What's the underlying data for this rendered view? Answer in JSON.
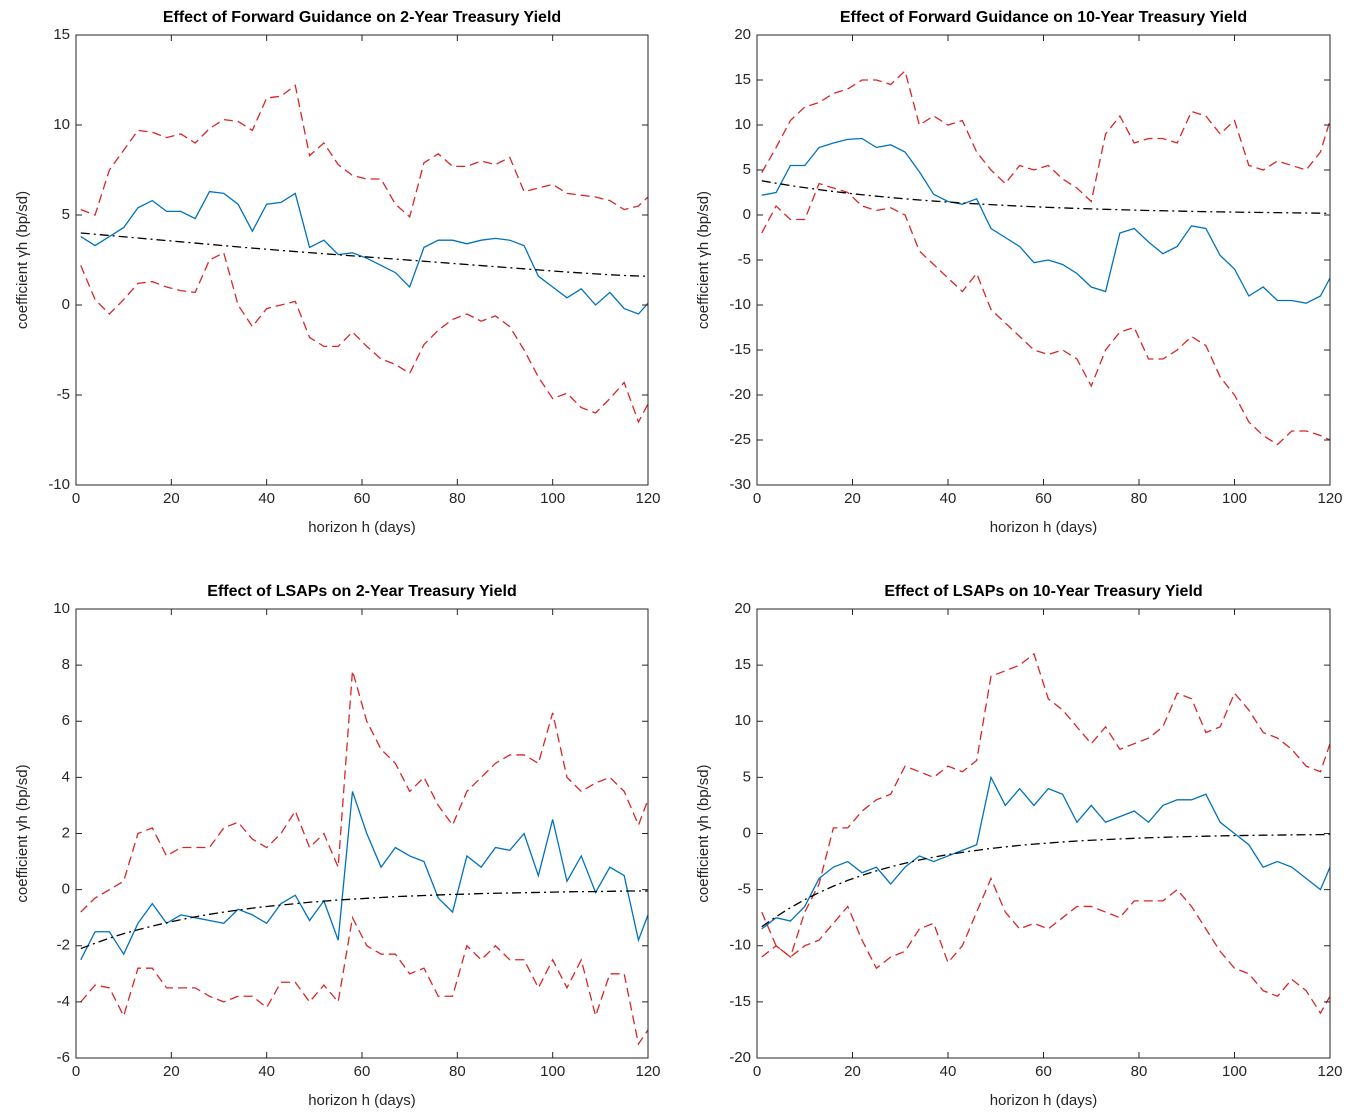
{
  "chart_data": [
    {
      "type": "line",
      "title": "Effect of Forward Guidance on 2-Year Treasury Yield",
      "xlabel": "horizon h (days)",
      "ylabel": "coefficient γh (bp/sd)",
      "x": [
        1,
        4,
        7,
        10,
        13,
        16,
        19,
        22,
        25,
        28,
        31,
        34,
        37,
        40,
        43,
        46,
        49,
        52,
        55,
        58,
        61,
        64,
        67,
        70,
        73,
        76,
        79,
        82,
        85,
        88,
        91,
        94,
        97,
        100,
        103,
        106,
        109,
        112,
        115,
        118,
        120
      ],
      "xlim": [
        0,
        120
      ],
      "xticks": [
        0,
        20,
        40,
        60,
        80,
        100,
        120
      ],
      "ylim": [
        -10,
        15
      ],
      "yticks": [
        -10,
        -5,
        0,
        5,
        10,
        15
      ],
      "grid": false,
      "series": [
        {
          "color": "#d62728",
          "style": "dashed",
          "values": [
            5.3,
            5.0,
            7.5,
            8.6,
            9.7,
            9.6,
            9.3,
            9.5,
            9.0,
            9.8,
            10.3,
            10.2,
            9.7,
            11.5,
            11.6,
            12.2,
            8.3,
            9.0,
            7.8,
            7.2,
            7.0,
            7.0,
            5.6,
            4.9,
            7.9,
            8.4,
            7.7,
            7.7,
            8.0,
            7.8,
            8.2,
            6.3,
            6.5,
            6.7,
            6.2,
            6.1,
            6.0,
            5.8,
            5.3,
            5.5,
            6.0
          ]
        },
        {
          "color": "#d62728",
          "style": "dashed",
          "values": [
            2.2,
            0.3,
            -0.5,
            0.3,
            1.2,
            1.3,
            1.0,
            0.8,
            0.7,
            2.5,
            2.9,
            0.0,
            -1.2,
            -0.2,
            0.0,
            0.2,
            -1.8,
            -2.3,
            -2.3,
            -1.5,
            -2.3,
            -3.0,
            -3.3,
            -3.8,
            -2.2,
            -1.4,
            -0.8,
            -0.5,
            -0.9,
            -0.6,
            -1.2,
            -2.5,
            -4.0,
            -5.2,
            -4.9,
            -5.7,
            -6.0,
            -5.2,
            -4.3,
            -6.5,
            -5.5
          ]
        },
        {
          "color": "#0072bd",
          "style": "solid",
          "values": [
            3.8,
            3.3,
            3.8,
            4.3,
            5.4,
            5.8,
            5.2,
            5.2,
            4.8,
            6.3,
            6.2,
            5.6,
            4.1,
            5.6,
            5.7,
            6.2,
            3.2,
            3.6,
            2.8,
            2.9,
            2.6,
            2.2,
            1.8,
            1.0,
            3.2,
            3.6,
            3.6,
            3.4,
            3.6,
            3.7,
            3.6,
            3.3,
            1.6,
            1.0,
            0.4,
            0.9,
            0.0,
            0.7,
            -0.2,
            -0.5,
            0.1
          ]
        },
        {
          "color": "#000000",
          "style": "dashdot",
          "values": [
            4.0,
            3.93,
            3.86,
            3.79,
            3.72,
            3.65,
            3.58,
            3.51,
            3.44,
            3.37,
            3.3,
            3.23,
            3.16,
            3.1,
            3.03,
            2.97,
            2.91,
            2.85,
            2.79,
            2.73,
            2.67,
            2.61,
            2.55,
            2.49,
            2.43,
            2.37,
            2.31,
            2.25,
            2.19,
            2.13,
            2.07,
            2.01,
            1.95,
            1.89,
            1.83,
            1.78,
            1.73,
            1.68,
            1.64,
            1.61,
            1.6
          ]
        }
      ]
    },
    {
      "type": "line",
      "title": "Effect of Forward Guidance on 10-Year Treasury Yield",
      "xlabel": "horizon h (days)",
      "ylabel": "coefficient γh (bp/sd)",
      "x": [
        1,
        4,
        7,
        10,
        13,
        16,
        19,
        22,
        25,
        28,
        31,
        34,
        37,
        40,
        43,
        46,
        49,
        52,
        55,
        58,
        61,
        64,
        67,
        70,
        73,
        76,
        79,
        82,
        85,
        88,
        91,
        94,
        97,
        100,
        103,
        106,
        109,
        112,
        115,
        118,
        120
      ],
      "xlim": [
        0,
        120
      ],
      "xticks": [
        0,
        20,
        40,
        60,
        80,
        100,
        120
      ],
      "ylim": [
        -30,
        20
      ],
      "yticks": [
        -30,
        -25,
        -20,
        -15,
        -10,
        -5,
        0,
        5,
        10,
        15,
        20
      ],
      "grid": false,
      "series": [
        {
          "color": "#d62728",
          "style": "dashed",
          "values": [
            4.7,
            7.5,
            10.5,
            12.0,
            12.5,
            13.5,
            14.0,
            15.0,
            15.0,
            14.5,
            16.0,
            10.0,
            11.0,
            10.0,
            10.5,
            7.0,
            5.0,
            3.5,
            5.5,
            5.0,
            5.5,
            4.0,
            3.0,
            1.5,
            9.0,
            11.0,
            8.0,
            8.5,
            8.5,
            8.0,
            11.5,
            11.0,
            9.0,
            10.5,
            5.5,
            5.0,
            6.0,
            5.5,
            5.0,
            7.0,
            10.5
          ]
        },
        {
          "color": "#d62728",
          "style": "dashed",
          "values": [
            -2.0,
            1.0,
            -0.5,
            -0.5,
            3.5,
            3.0,
            2.5,
            1.0,
            0.5,
            0.8,
            0.0,
            -4.0,
            -5.5,
            -7.0,
            -8.5,
            -6.5,
            -10.5,
            -12.0,
            -13.5,
            -15.0,
            -15.5,
            -15.0,
            -16.0,
            -19.0,
            -15.0,
            -13.0,
            -12.5,
            -16.0,
            -16.0,
            -15.0,
            -13.5,
            -14.5,
            -18.0,
            -20.0,
            -23.0,
            -24.5,
            -25.5,
            -24.0,
            -24.0,
            -24.5,
            -25.0
          ]
        },
        {
          "color": "#0072bd",
          "style": "solid",
          "values": [
            2.2,
            2.5,
            5.5,
            5.5,
            7.5,
            8.0,
            8.4,
            8.5,
            7.5,
            7.8,
            7.0,
            4.8,
            2.3,
            1.5,
            1.2,
            1.8,
            -1.5,
            -2.5,
            -3.5,
            -5.3,
            -5.0,
            -5.5,
            -6.5,
            -8.0,
            -8.5,
            -2.0,
            -1.5,
            -3.0,
            -4.3,
            -3.5,
            -1.2,
            -1.5,
            -4.5,
            -6.0,
            -9.0,
            -8.0,
            -9.5,
            -9.5,
            -9.8,
            -9.0,
            -7.0
          ]
        },
        {
          "color": "#000000",
          "style": "dashdot",
          "values": [
            3.8,
            3.53,
            3.27,
            3.04,
            2.82,
            2.61,
            2.43,
            2.25,
            2.09,
            1.94,
            1.8,
            1.67,
            1.55,
            1.44,
            1.33,
            1.24,
            1.15,
            1.07,
            0.99,
            0.92,
            0.85,
            0.79,
            0.73,
            0.68,
            0.63,
            0.59,
            0.54,
            0.5,
            0.47,
            0.44,
            0.4,
            0.37,
            0.35,
            0.32,
            0.3,
            0.28,
            0.26,
            0.24,
            0.22,
            0.2,
            0.19
          ]
        }
      ]
    },
    {
      "type": "line",
      "title": "Effect of LSAPs on 2-Year Treasury Yield",
      "xlabel": "horizon h (days)",
      "ylabel": "coefficient γh (bp/sd)",
      "x": [
        1,
        4,
        7,
        10,
        13,
        16,
        19,
        22,
        25,
        28,
        31,
        34,
        37,
        40,
        43,
        46,
        49,
        52,
        55,
        58,
        61,
        64,
        67,
        70,
        73,
        76,
        79,
        82,
        85,
        88,
        91,
        94,
        97,
        100,
        103,
        106,
        109,
        112,
        115,
        118,
        120
      ],
      "xlim": [
        0,
        120
      ],
      "xticks": [
        0,
        20,
        40,
        60,
        80,
        100,
        120
      ],
      "ylim": [
        -6,
        10
      ],
      "yticks": [
        -6,
        -4,
        -2,
        0,
        2,
        4,
        6,
        8,
        10
      ],
      "grid": false,
      "series": [
        {
          "color": "#d62728",
          "style": "dashed",
          "values": [
            -0.8,
            -0.3,
            0.0,
            0.3,
            2.0,
            2.2,
            1.2,
            1.5,
            1.5,
            1.5,
            2.2,
            2.4,
            1.8,
            1.5,
            2.0,
            2.8,
            1.5,
            2.0,
            0.8,
            7.8,
            6.0,
            5.0,
            4.5,
            3.5,
            4.0,
            3.0,
            2.3,
            3.5,
            4.0,
            4.5,
            4.8,
            4.8,
            4.5,
            6.3,
            4.0,
            3.5,
            3.8,
            4.0,
            3.5,
            2.3,
            3.2
          ]
        },
        {
          "color": "#d62728",
          "style": "dashed",
          "values": [
            -4.0,
            -3.4,
            -3.5,
            -4.5,
            -2.8,
            -2.8,
            -3.5,
            -3.5,
            -3.5,
            -3.8,
            -4.0,
            -3.8,
            -3.8,
            -4.2,
            -3.3,
            -3.3,
            -4.0,
            -3.4,
            -4.0,
            -1.0,
            -2.0,
            -2.3,
            -2.3,
            -3.0,
            -2.8,
            -3.8,
            -3.8,
            -2.0,
            -2.5,
            -2.0,
            -2.5,
            -2.5,
            -3.5,
            -2.5,
            -3.5,
            -2.5,
            -4.5,
            -3.0,
            -3.0,
            -5.5,
            -5.0
          ]
        },
        {
          "color": "#0072bd",
          "style": "solid",
          "values": [
            -2.5,
            -1.5,
            -1.5,
            -2.3,
            -1.2,
            -0.5,
            -1.2,
            -0.9,
            -1.0,
            -1.1,
            -1.2,
            -0.7,
            -0.9,
            -1.2,
            -0.5,
            -0.2,
            -1.1,
            -0.4,
            -1.8,
            3.5,
            2.0,
            0.8,
            1.5,
            1.2,
            1.0,
            -0.3,
            -0.8,
            1.2,
            0.8,
            1.5,
            1.4,
            2.0,
            0.5,
            2.5,
            0.3,
            1.2,
            -0.1,
            0.8,
            0.5,
            -1.8,
            -0.9
          ]
        },
        {
          "color": "#000000",
          "style": "dashdot",
          "values": [
            -2.1,
            -1.91,
            -1.73,
            -1.57,
            -1.43,
            -1.3,
            -1.18,
            -1.07,
            -0.97,
            -0.88,
            -0.8,
            -0.73,
            -0.66,
            -0.6,
            -0.55,
            -0.5,
            -0.45,
            -0.41,
            -0.37,
            -0.34,
            -0.31,
            -0.28,
            -0.25,
            -0.23,
            -0.21,
            -0.19,
            -0.17,
            -0.16,
            -0.14,
            -0.13,
            -0.12,
            -0.11,
            -0.1,
            -0.09,
            -0.08,
            -0.07,
            -0.07,
            -0.06,
            -0.05,
            -0.05,
            -0.05
          ]
        }
      ]
    },
    {
      "type": "line",
      "title": "Effect of LSAPs on 10-Year Treasury Yield",
      "xlabel": "horizon h (days)",
      "ylabel": "coefficient γh (bp/sd)",
      "x": [
        1,
        4,
        7,
        10,
        13,
        16,
        19,
        22,
        25,
        28,
        31,
        34,
        37,
        40,
        43,
        46,
        49,
        52,
        55,
        58,
        61,
        64,
        67,
        70,
        73,
        76,
        79,
        82,
        85,
        88,
        91,
        94,
        97,
        100,
        103,
        106,
        109,
        112,
        115,
        118,
        120
      ],
      "xlim": [
        0,
        120
      ],
      "xticks": [
        0,
        20,
        40,
        60,
        80,
        100,
        120
      ],
      "ylim": [
        -20,
        20
      ],
      "yticks": [
        -20,
        -15,
        -10,
        -5,
        0,
        5,
        10,
        15,
        20
      ],
      "grid": false,
      "series": [
        {
          "color": "#d62728",
          "style": "dashed",
          "values": [
            -11.0,
            -10.0,
            -11.0,
            -7.0,
            -4.5,
            0.5,
            0.5,
            2.0,
            3.0,
            3.5,
            6.0,
            5.5,
            5.0,
            6.0,
            5.5,
            6.5,
            14.0,
            14.5,
            15.0,
            16.0,
            12.0,
            11.0,
            9.5,
            8.0,
            9.5,
            7.5,
            8.0,
            8.5,
            9.5,
            12.5,
            12.0,
            9.0,
            9.5,
            12.5,
            11.0,
            9.0,
            8.5,
            7.5,
            6.0,
            5.5,
            8.0
          ]
        },
        {
          "color": "#d62728",
          "style": "dashed",
          "values": [
            -7.0,
            -10.0,
            -11.0,
            -10.0,
            -9.5,
            -8.0,
            -6.5,
            -9.5,
            -12.0,
            -11.0,
            -10.5,
            -8.5,
            -8.0,
            -11.5,
            -10.0,
            -7.0,
            -4.0,
            -7.0,
            -8.5,
            -8.0,
            -8.5,
            -7.5,
            -6.5,
            -6.5,
            -7.0,
            -7.5,
            -6.0,
            -6.0,
            -6.0,
            -5.0,
            -6.5,
            -8.5,
            -10.5,
            -12.0,
            -12.5,
            -14.0,
            -14.5,
            -13.0,
            -14.0,
            -16.0,
            -14.5
          ]
        },
        {
          "color": "#0072bd",
          "style": "solid",
          "values": [
            -8.5,
            -7.5,
            -7.8,
            -6.5,
            -4.0,
            -3.0,
            -2.5,
            -3.5,
            -3.0,
            -4.5,
            -3.0,
            -2.0,
            -2.5,
            -2.0,
            -1.5,
            -1.0,
            5.0,
            2.5,
            4.0,
            2.5,
            4.0,
            3.5,
            1.0,
            2.5,
            1.0,
            1.5,
            2.0,
            1.0,
            2.5,
            3.0,
            3.0,
            3.5,
            1.0,
            0.0,
            -1.0,
            -3.0,
            -2.5,
            -3.0,
            -4.0,
            -5.0,
            -3.0
          ]
        },
        {
          "color": "#000000",
          "style": "dashdot",
          "values": [
            -8.3,
            -7.41,
            -6.61,
            -5.89,
            -5.26,
            -4.69,
            -4.18,
            -3.73,
            -3.33,
            -2.97,
            -2.65,
            -2.36,
            -2.11,
            -1.88,
            -1.68,
            -1.5,
            -1.33,
            -1.19,
            -1.06,
            -0.95,
            -0.85,
            -0.75,
            -0.67,
            -0.6,
            -0.54,
            -0.48,
            -0.43,
            -0.38,
            -0.34,
            -0.3,
            -0.27,
            -0.24,
            -0.21,
            -0.19,
            -0.17,
            -0.15,
            -0.14,
            -0.12,
            -0.11,
            -0.1,
            -0.09
          ]
        }
      ]
    }
  ]
}
